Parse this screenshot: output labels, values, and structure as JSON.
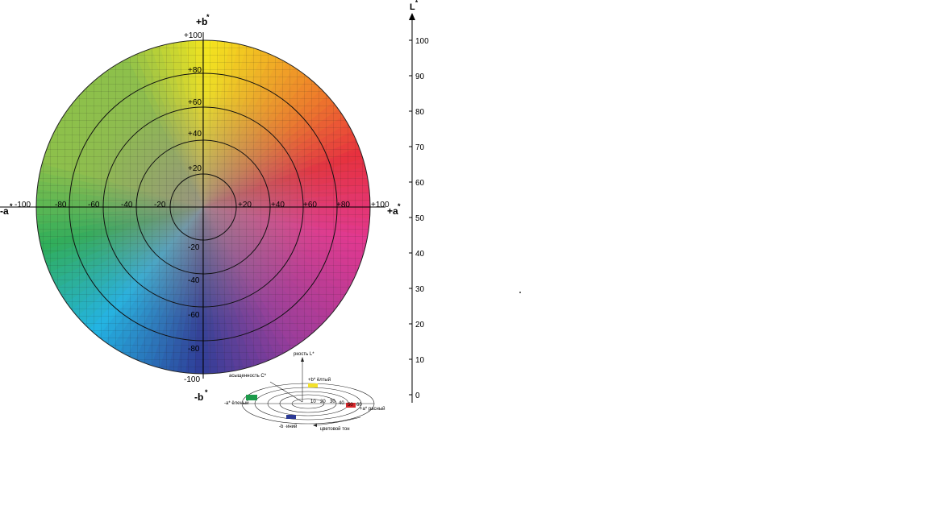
{
  "diagram": {
    "axis_labels": {
      "pos_b": "+b",
      "neg_b": "-b",
      "neg_a": "-a",
      "pos_a": "+a",
      "lightness": "L",
      "star": "*"
    },
    "b_top_value": "+100",
    "b_bottom_value": "-100",
    "a_left_value": "-100",
    "a_right_value": "+100",
    "a_ticks": [
      "-80",
      "-60",
      "-40",
      "-20",
      "+20",
      "+40",
      "+60",
      "+80"
    ],
    "b_ticks": [
      "+80",
      "+60",
      "+40",
      "+20",
      "-20",
      "-40",
      "-60",
      "-80"
    ],
    "l_ticks": [
      "100",
      "90",
      "80",
      "70",
      "60",
      "50",
      "40",
      "30",
      "20",
      "10",
      "0"
    ],
    "mini": {
      "lightness_label": "ркость L*",
      "chroma_label": "асыщенность C*",
      "yellow_label": "+b* ёлтый",
      "green_label": "-a* ёленый",
      "red_label": "+a* расный",
      "blue_label": "-b ·иний",
      "hue_label": "цветовой тон",
      "rings": [
        "10",
        "20",
        "30",
        "40",
        "50",
        "60"
      ]
    },
    "colors": {
      "yellow": "#f4e61d",
      "orange": "#ef7a2a",
      "red": "#e8303e",
      "magenta": "#e2378f",
      "purple": "#9a3c9b",
      "blue": "#2e3d98",
      "cyan": "#22b4e3",
      "green": "#2fae5a",
      "lime": "#8dc14a"
    }
  }
}
